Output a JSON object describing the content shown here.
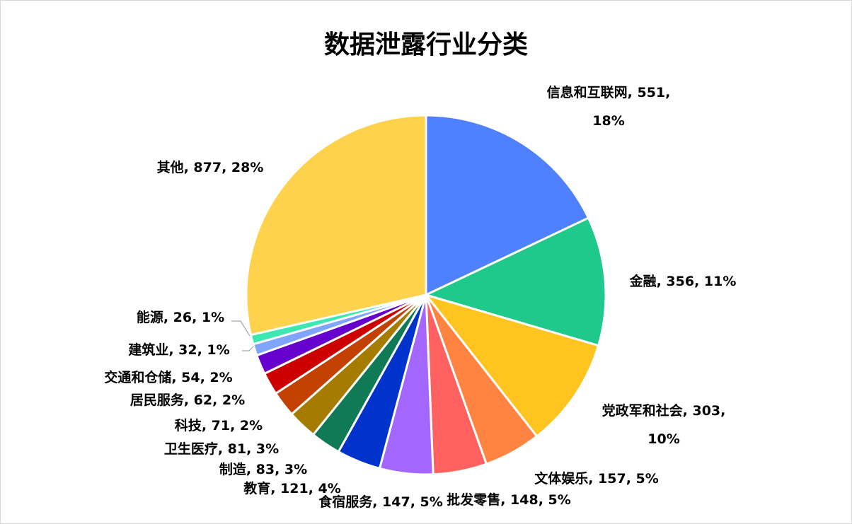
{
  "chart_data": {
    "type": "pie",
    "title": "数据泄露行业分类",
    "start_angle_deg": 0,
    "direction": "clockwise",
    "legend": "none",
    "slices": [
      {
        "label": "信息和互联网",
        "value": 551,
        "percent": "18%",
        "color": "#4f81ff"
      },
      {
        "label": "金融",
        "value": 356,
        "percent": "11%",
        "color": "#1ec98b"
      },
      {
        "label": "党政军和社会",
        "value": 303,
        "percent": "10%",
        "color": "#ffc41f"
      },
      {
        "label": "文体娱乐",
        "value": 157,
        "percent": "5%",
        "color": "#ff8442"
      },
      {
        "label": "批发零售",
        "value": 148,
        "percent": "5%",
        "color": "#ff6161"
      },
      {
        "label": "食宿服务",
        "value": 147,
        "percent": "5%",
        "color": "#a366ff"
      },
      {
        "label": "教育",
        "value": 121,
        "percent": "4%",
        "color": "#0033cc"
      },
      {
        "label": "制造",
        "value": 83,
        "percent": "3%",
        "color": "#0f7a55"
      },
      {
        "label": "卫生医疗",
        "value": 81,
        "percent": "3%",
        "color": "#a67c00"
      },
      {
        "label": "科技",
        "value": 71,
        "percent": "2%",
        "color": "#c24100"
      },
      {
        "label": "居民服务",
        "value": 62,
        "percent": "2%",
        "color": "#cc0000"
      },
      {
        "label": "交通和仓储",
        "value": 54,
        "percent": "2%",
        "color": "#6600cc"
      },
      {
        "label": "建筑业",
        "value": 32,
        "percent": "1%",
        "color": "#7fa5ff"
      },
      {
        "label": "能源",
        "value": 26,
        "percent": "1%",
        "color": "#3de8b0"
      },
      {
        "label": "其他",
        "value": 877,
        "percent": "28%",
        "color": "#ffd24d"
      }
    ]
  }
}
